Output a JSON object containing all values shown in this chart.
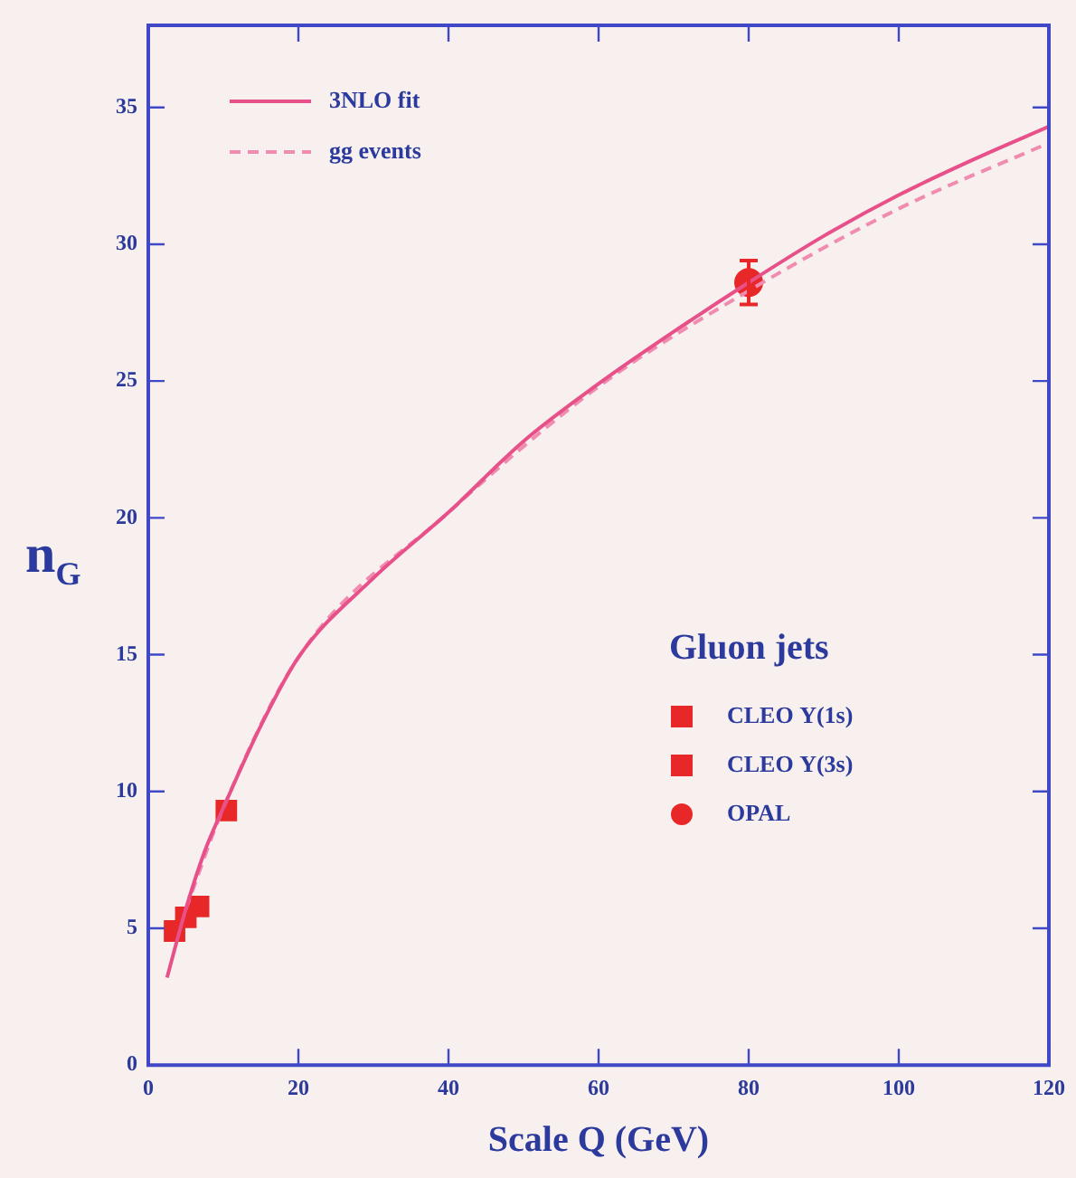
{
  "chart_data": {
    "type": "line",
    "xlabel": "Scale Q (GeV)",
    "ylabel": "n$_{G}$",
    "legend_title": "Gluon jets",
    "xlim": [
      0,
      120
    ],
    "xticks": [
      0,
      20,
      40,
      60,
      80,
      100,
      120
    ],
    "ylim": [
      0,
      38
    ],
    "yticks": [
      0,
      5,
      10,
      15,
      20,
      25,
      30,
      35
    ],
    "grid": false,
    "legend": "top left",
    "series": [
      {
        "name": "3NLO fit",
        "type": "line",
        "color": "#e8508a",
        "line_style": "solid",
        "marker": "none",
        "x": [
          2.5,
          5,
          7.5,
          10,
          15,
          20,
          30,
          40,
          50,
          60,
          70,
          80,
          90,
          100,
          110,
          120
        ],
        "values": [
          3.2,
          5.7,
          7.8,
          9.4,
          12.4,
          14.9,
          17.8,
          20.2,
          22.8,
          24.9,
          26.8,
          28.6,
          30.3,
          31.8,
          33.1,
          34.3
        ]
      },
      {
        "name": "gg events",
        "type": "line",
        "color": "#f08cb0",
        "line_style": "dashed",
        "marker": "none",
        "x": [
          5,
          10,
          20,
          40,
          60,
          80,
          100,
          120
        ],
        "values": [
          5.7,
          9.4,
          14.9,
          20.2,
          24.8,
          28.3,
          31.3,
          33.7
        ]
      },
      {
        "name": "CLEO Υ(1s)",
        "type": "scatter",
        "color": "#e82828",
        "marker": "square",
        "x": [
          3.5,
          5.0,
          6.7
        ],
        "values": [
          4.9,
          5.4,
          5.8
        ]
      },
      {
        "name": "CLEO Υ(3s)",
        "type": "scatter",
        "color": "#e82828",
        "marker": "square",
        "x": [
          10.4
        ],
        "values": [
          9.3
        ]
      },
      {
        "name": "OPAL",
        "type": "scatter",
        "color": "#e82828",
        "marker": "circle",
        "x": [
          80
        ],
        "values": [
          28.6
        ],
        "errors": [
          0.8
        ]
      }
    ]
  }
}
